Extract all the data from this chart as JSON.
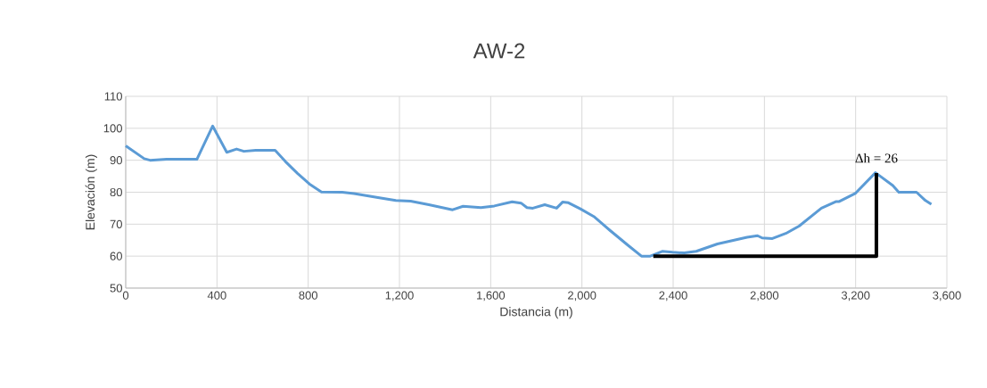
{
  "chart_data": {
    "type": "line",
    "title": "AW-2",
    "xlabel": "Distancia (m)",
    "ylabel": "Elevación (m)",
    "xlim": [
      0,
      3600
    ],
    "ylim": [
      50,
      110
    ],
    "xticks": [
      0,
      400,
      800,
      {
        "value": 1200,
        "label": "1,200"
      },
      {
        "value": 1600,
        "label": "1,600"
      },
      {
        "value": 2000,
        "label": "2,000"
      },
      {
        "value": 2400,
        "label": "2,400"
      },
      {
        "value": 2800,
        "label": "2,800"
      },
      {
        "value": 3200,
        "label": "3,200"
      },
      {
        "value": 3600,
        "label": "3,600"
      }
    ],
    "yticks": [
      50,
      60,
      70,
      80,
      90,
      100,
      110
    ],
    "grid": true,
    "series": [
      {
        "color": "#5b9bd5",
        "x": [
          0,
          81,
          107,
          179,
          312,
          381,
          443,
          486,
          518,
          570,
          655,
          700,
          753,
          805,
          858,
          949,
          1001,
          1106,
          1184,
          1249,
          1329,
          1433,
          1479,
          1557,
          1616,
          1694,
          1733,
          1759,
          1785,
          1837,
          1889,
          1915,
          1941,
          1993,
          2052,
          2124,
          2202,
          2261,
          2300,
          2352,
          2397,
          2449,
          2501,
          2594,
          2724,
          2770,
          2790,
          2835,
          2894,
          2952,
          3050,
          3115,
          3128,
          3200,
          3287,
          3363,
          3389,
          3467,
          3506,
          3532
        ],
        "values": [
          94.5,
          90.5,
          90,
          90.3,
          90.3,
          100.7,
          92.5,
          93.5,
          92.8,
          93.1,
          93.1,
          89.6,
          85.9,
          82.6,
          80.1,
          80,
          79.6,
          78.3,
          77.4,
          77.2,
          76.1,
          74.5,
          75.6,
          75.2,
          75.7,
          77,
          76.6,
          75.2,
          75,
          76.1,
          75,
          76.9,
          76.7,
          74.8,
          72.4,
          68,
          63.4,
          60,
          60,
          61.5,
          61.2,
          61,
          61.5,
          63.8,
          65.9,
          66.4,
          65.7,
          65.5,
          67.1,
          69.4,
          75,
          77.1,
          77.1,
          79.7,
          86.1,
          82.1,
          80,
          80,
          77.4,
          76.2
        ]
      },
      {
        "color": "#000000",
        "x": [
          2313,
          3291,
          3291
        ],
        "values": [
          60,
          60,
          86
        ]
      }
    ],
    "annotations": [
      {
        "text": "Δh = 26",
        "x": 3291,
        "y": 86
      }
    ]
  }
}
